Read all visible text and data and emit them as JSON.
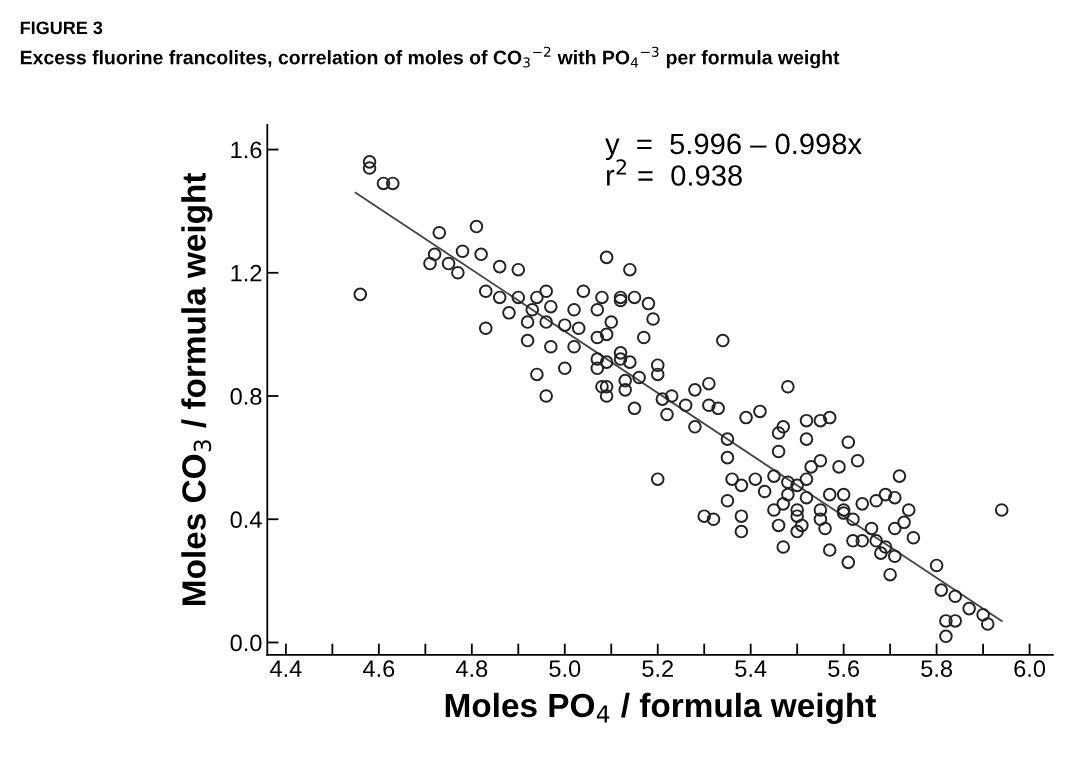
{
  "chart_data": {
    "type": "scatter",
    "title": "FIGURE 3",
    "subtitle": "Excess fluorine francolites, correlation of moles of CO$_{3}$$^{−2}$ with PO$_{4}$$^{−3}$ per formula weight",
    "xlabel": "Moles PO$_{4}$ / formula weight",
    "ylabel": "Moles CO$_{3}$ / formula weight",
    "annotations": [
      "y  =  5.996 – 0.998x",
      "r$^{2}$ =  0.938"
    ],
    "xlim": [
      4.36,
      6.05
    ],
    "ylim": [
      -0.04,
      1.68
    ],
    "xticks": [
      4.4,
      {
        "value": 4.5,
        "label": null
      },
      4.6,
      {
        "value": 4.7,
        "label": null
      },
      4.8,
      {
        "value": 4.9,
        "label": null
      },
      {
        "value": 5,
        "label": "5.0"
      },
      {
        "value": 5.1,
        "label": null
      },
      5.2,
      {
        "value": 5.3,
        "label": null
      },
      5.4,
      {
        "value": 5.5,
        "label": null
      },
      5.6,
      {
        "value": 5.7,
        "label": null
      },
      5.8,
      {
        "value": 5.9,
        "label": null
      },
      {
        "value": 6,
        "label": "6.0"
      }
    ],
    "yticks": [
      {
        "value": 0,
        "label": "0.0"
      },
      0.4,
      0.8,
      1.2,
      1.6
    ],
    "grid": false,
    "marker": "circle",
    "series": [
      {
        "color": "#222222",
        "x": [
          4.58,
          4.58,
          4.61,
          4.63,
          4.56,
          4.73,
          4.81,
          4.72,
          4.71,
          4.75,
          4.78,
          4.77,
          4.82,
          4.86,
          4.9,
          5.09,
          5.14,
          4.83,
          4.86,
          4.9,
          4.94,
          4.96,
          5.04,
          5.08,
          5.12,
          5.15,
          5.18,
          4.88,
          4.93,
          4.97,
          5.02,
          5.07,
          5.19,
          4.83,
          4.92,
          4.96,
          5.0,
          5.03,
          5.1,
          4.92,
          4.97,
          5.02,
          5.07,
          5.09,
          5.17,
          4.94,
          5.0,
          5.07,
          5.09,
          5.12,
          4.96,
          5.08,
          5.15,
          5.13,
          5.12,
          5.34,
          5.07,
          5.12,
          5.14,
          5.2,
          5.09,
          5.09,
          5.13,
          5.16,
          5.2,
          5.21,
          5.23,
          5.22,
          5.26,
          5.28,
          5.31,
          5.31,
          5.33,
          5.28,
          5.48,
          5.35,
          5.35,
          5.2,
          5.39,
          5.42,
          5.47,
          5.46,
          5.46,
          5.52,
          5.55,
          5.57,
          5.52,
          5.61,
          5.55,
          5.59,
          5.36,
          5.38,
          5.41,
          5.45,
          5.48,
          5.52,
          5.43,
          5.48,
          5.52,
          5.57,
          5.6,
          5.35,
          5.3,
          5.32,
          5.38,
          5.45,
          5.5,
          5.55,
          5.6,
          5.38,
          5.46,
          5.51,
          5.63,
          5.72,
          5.53,
          5.5,
          5.69,
          5.71,
          5.67,
          5.74,
          5.47,
          5.64,
          5.73,
          5.71,
          5.75,
          5.94,
          5.5,
          5.6,
          5.62,
          5.66,
          5.55,
          5.5,
          5.56,
          5.62,
          5.64,
          5.67,
          5.69,
          5.57,
          5.68,
          5.71,
          5.47,
          5.61,
          5.7,
          5.8,
          5.81,
          5.84,
          5.87,
          5.9,
          5.91,
          5.82,
          5.84,
          5.82
        ],
        "values": [
          1.54,
          1.56,
          1.49,
          1.49,
          1.13,
          1.33,
          1.35,
          1.26,
          1.23,
          1.23,
          1.27,
          1.2,
          1.26,
          1.22,
          1.21,
          1.25,
          1.21,
          1.14,
          1.12,
          1.12,
          1.12,
          1.14,
          1.14,
          1.12,
          1.11,
          1.12,
          1.1,
          1.07,
          1.08,
          1.09,
          1.08,
          1.08,
          1.05,
          1.02,
          1.04,
          1.04,
          1.03,
          1.02,
          1.04,
          0.98,
          0.96,
          0.96,
          0.99,
          1.0,
          0.99,
          0.87,
          0.89,
          0.89,
          0.91,
          0.92,
          0.8,
          0.83,
          0.76,
          0.85,
          1.12,
          0.98,
          0.92,
          0.94,
          0.91,
          0.9,
          0.83,
          0.8,
          0.82,
          0.86,
          0.87,
          0.79,
          0.8,
          0.74,
          0.77,
          0.82,
          0.84,
          0.77,
          0.76,
          0.7,
          0.83,
          0.66,
          0.6,
          0.53,
          0.73,
          0.75,
          0.7,
          0.68,
          0.62,
          0.72,
          0.72,
          0.73,
          0.66,
          0.65,
          0.59,
          0.57,
          0.53,
          0.51,
          0.53,
          0.54,
          0.52,
          0.53,
          0.49,
          0.48,
          0.47,
          0.48,
          0.48,
          0.46,
          0.41,
          0.4,
          0.41,
          0.43,
          0.43,
          0.43,
          0.43,
          0.36,
          0.38,
          0.38,
          0.59,
          0.54,
          0.57,
          0.51,
          0.48,
          0.47,
          0.46,
          0.43,
          0.45,
          0.45,
          0.39,
          0.37,
          0.34,
          0.43,
          0.41,
          0.42,
          0.4,
          0.37,
          0.4,
          0.36,
          0.37,
          0.33,
          0.33,
          0.33,
          0.31,
          0.3,
          0.29,
          0.28,
          0.31,
          0.26,
          0.22,
          0.25,
          0.17,
          0.15,
          0.11,
          0.09,
          0.06,
          0.07,
          0.07,
          0.02
        ]
      },
      {
        "type": "line",
        "color": "#444444",
        "marker": "none",
        "x": [
          4.55,
          5.94
        ],
        "values": [
          1.46,
          0.07
        ]
      }
    ]
  }
}
